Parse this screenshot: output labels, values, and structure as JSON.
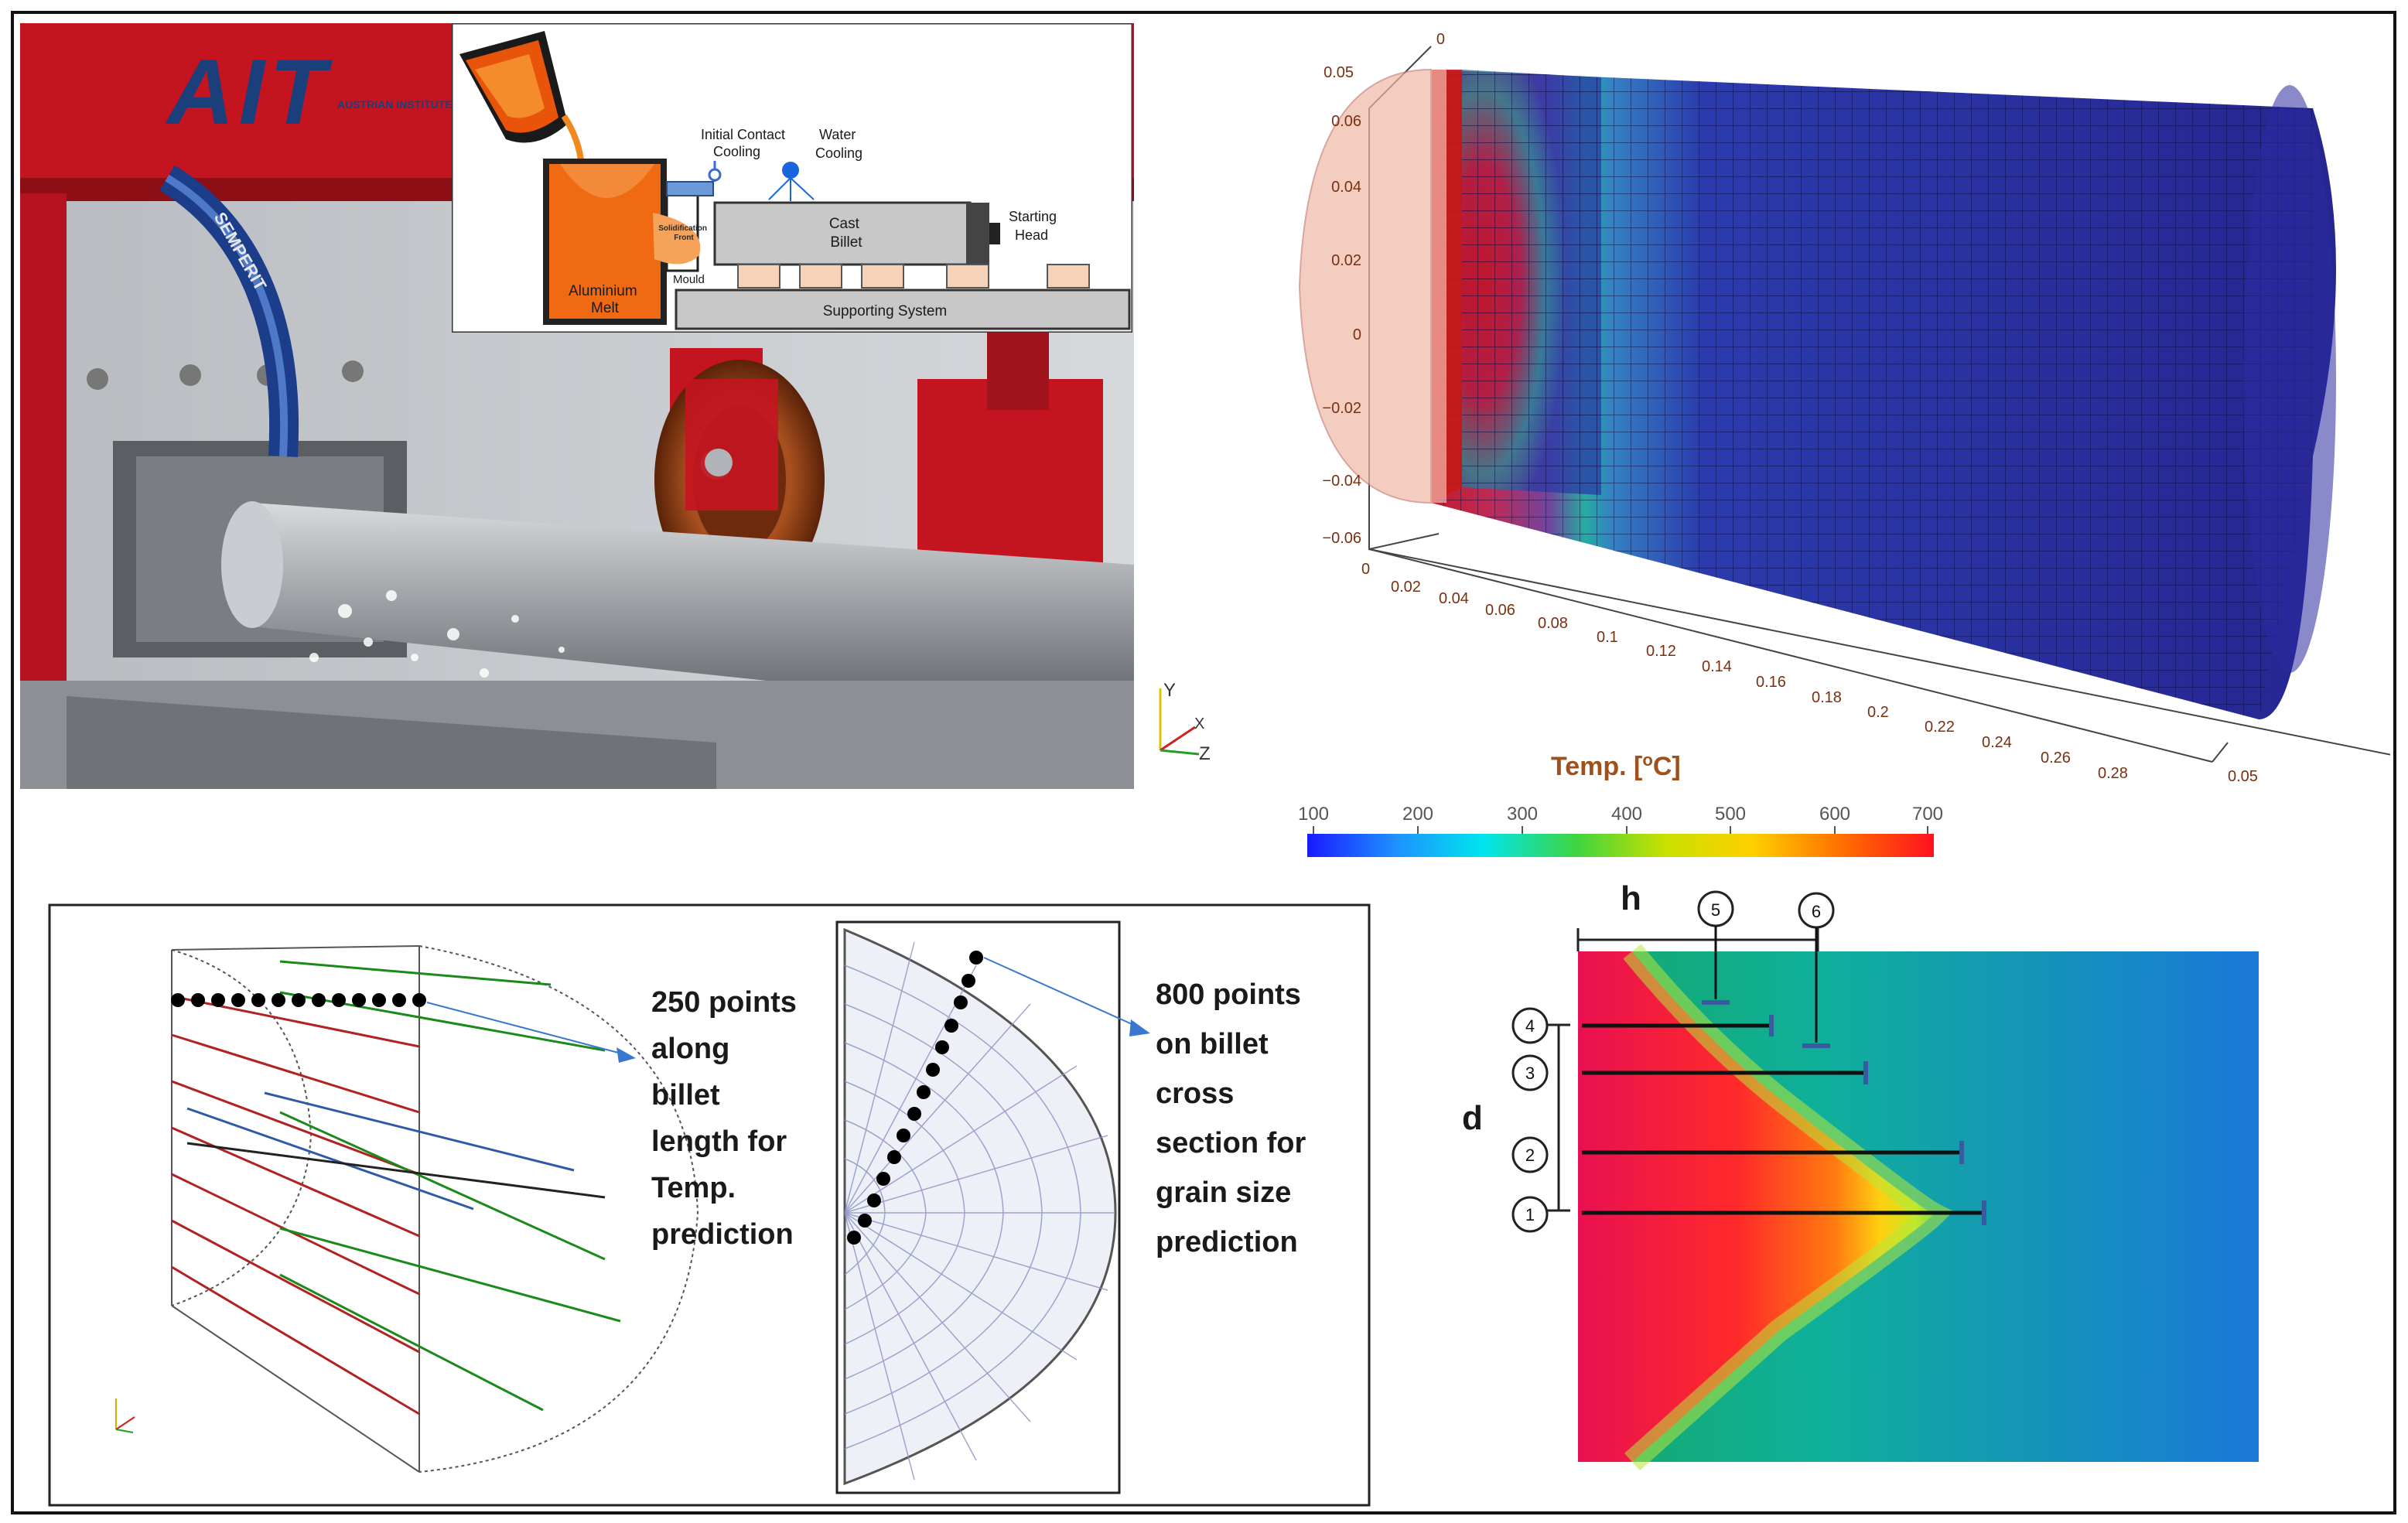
{
  "photo": {
    "logo": "AIT",
    "logo_sub": "AUSTRIAN INSTITUTE OF TECHNOLOGY",
    "hose_text": "SEMPERIT"
  },
  "process": {
    "initial_contact_cooling": [
      "Initial Contact",
      "Cooling"
    ],
    "water_cooling": [
      "Water",
      "Cooling"
    ],
    "solidification_front": [
      "Solidification",
      "Front"
    ],
    "cast_billet": [
      "Cast",
      "Billet"
    ],
    "starting_head": [
      "Starting",
      "Head"
    ],
    "aluminium_melt": [
      "Aluminium",
      "Melt"
    ],
    "mould": "Mould",
    "supporting_system": "Supporting System"
  },
  "mesh3d": {
    "y_ticks": [
      "0.06",
      "0.04",
      "0.02",
      "0",
      "−0.02",
      "−0.04",
      "−0.06"
    ],
    "z_ticks": [
      "0",
      "0.02",
      "0.04",
      "0.06",
      "0.08",
      "0.1",
      "0.12",
      "0.14",
      "0.16",
      "0.18",
      "0.2",
      "0.22",
      "0.24",
      "0.26",
      "0.28"
    ],
    "x_top_ticks": [
      "0.05",
      "0"
    ],
    "x_bottom_tick": "0.05",
    "triad": [
      "Y",
      "X",
      "Z"
    ]
  },
  "colorbar": {
    "title": "Temp. [",
    "title_sup": "o",
    "title_end": "C]",
    "ticks": [
      "100",
      "200",
      "300",
      "400",
      "500",
      "600",
      "700"
    ],
    "colors": [
      "#1a1aff",
      "#1e90ff",
      "#00e5ee",
      "#3fd43f",
      "#c8e000",
      "#ffd000",
      "#ff6a00",
      "#ff1020"
    ]
  },
  "sampling": {
    "label_250": [
      "250 points",
      "along",
      "billet",
      "length for",
      "Temp.",
      "prediction"
    ],
    "label_800": [
      "800 points",
      "on billet",
      "cross",
      "section for",
      "grain size",
      "prediction"
    ],
    "line_colors": [
      "#b22222",
      "#1a8a1a",
      "#2e5aa8",
      "#222222"
    ]
  },
  "contour": {
    "h_label": "h",
    "d_label": "d",
    "markers": [
      "1",
      "2",
      "3",
      "4",
      "5",
      "6"
    ]
  }
}
